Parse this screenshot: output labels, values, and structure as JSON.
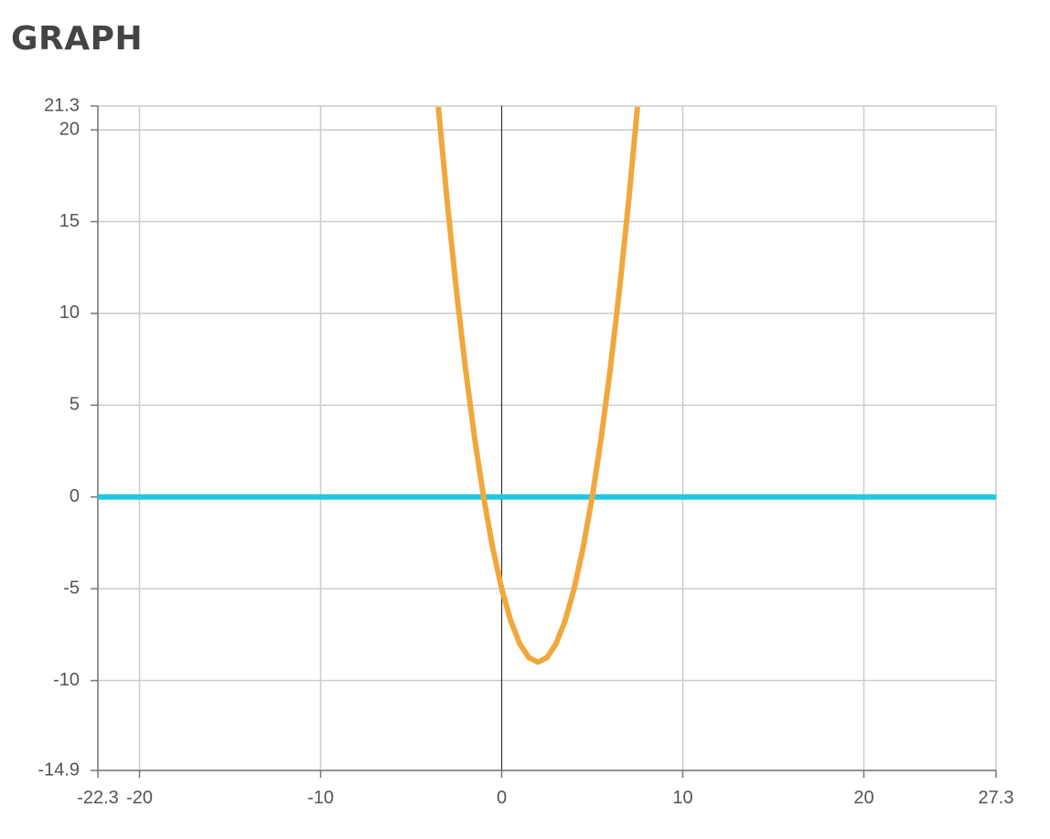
{
  "title": "GRAPH",
  "chart_data": {
    "type": "line",
    "title": "GRAPH",
    "xlabel": "",
    "ylabel": "",
    "xlim": [
      -22.3,
      27.3
    ],
    "ylim": [
      -14.9,
      21.3
    ],
    "x_ticks": [
      {
        "value": -22.3,
        "label": "-22.3"
      },
      {
        "value": -20,
        "label": "-20"
      },
      {
        "value": -10,
        "label": "-10"
      },
      {
        "value": 0,
        "label": "0"
      },
      {
        "value": 10,
        "label": "10"
      },
      {
        "value": 20,
        "label": "20"
      },
      {
        "value": 27.3,
        "label": "27.3"
      }
    ],
    "y_ticks": [
      {
        "value": 21.3,
        "label": "21.3"
      },
      {
        "value": 20,
        "label": "20"
      },
      {
        "value": 15,
        "label": "15"
      },
      {
        "value": 10,
        "label": "10"
      },
      {
        "value": 5,
        "label": "5"
      },
      {
        "value": 0,
        "label": "0"
      },
      {
        "value": -5,
        "label": "-5"
      },
      {
        "value": -10,
        "label": "-10"
      },
      {
        "value": -14.9,
        "label": "-14.9"
      }
    ],
    "grid": true,
    "series": [
      {
        "color": "#1ec8e8",
        "x": [
          -22.3,
          27.3
        ],
        "y": [
          0,
          0
        ]
      },
      {
        "color": "#f0a83c",
        "x": [
          -3.5,
          -3,
          -2.5,
          -2,
          -1.5,
          -1,
          -0.5,
          0,
          0.5,
          1,
          1.5,
          2,
          2.5,
          3,
          3.5,
          4,
          4.5,
          5,
          5.5,
          6,
          6.5,
          7,
          7.5
        ],
        "y": [
          21.25,
          16,
          11.25,
          7,
          3.25,
          0,
          -2.75,
          -5,
          -6.75,
          -8,
          -8.75,
          -9,
          -8.75,
          -8,
          -6.75,
          -5,
          -2.75,
          0,
          3.25,
          7,
          11.25,
          16,
          21.25
        ]
      }
    ]
  }
}
